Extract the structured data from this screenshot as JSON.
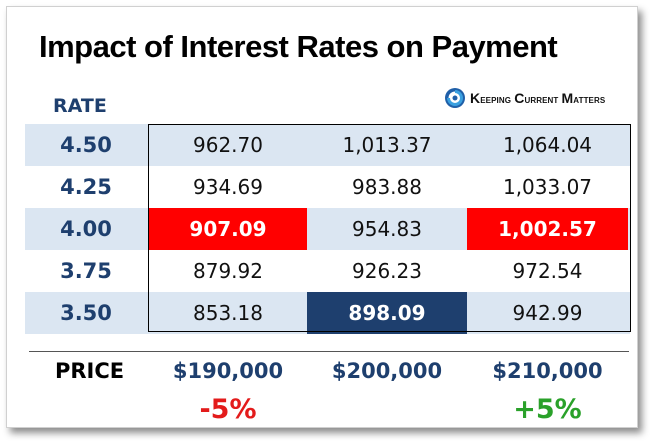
{
  "title": "Impact of Interest Rates on Payment",
  "rate_header": "RATE",
  "logo": {
    "icon": "swirl-logo-icon",
    "text_k": "K",
    "text_rest1": "eeping ",
    "text_c": "C",
    "text_rest2": "urrent ",
    "text_m": "M",
    "text_rest3": "atters"
  },
  "rows": [
    {
      "rate": "4.50",
      "values": [
        "962.70",
        "1,013.37",
        "1,064.04"
      ]
    },
    {
      "rate": "4.25",
      "values": [
        "934.69",
        "983.88",
        "1,033.07"
      ]
    },
    {
      "rate": "4.00",
      "values": [
        "907.09",
        "954.83",
        "1,002.57"
      ]
    },
    {
      "rate": "3.75",
      "values": [
        "879.92",
        "926.23",
        "972.54"
      ]
    },
    {
      "rate": "3.50",
      "values": [
        "853.18",
        "898.09",
        "942.99"
      ]
    }
  ],
  "price_label": "PRICE",
  "prices": [
    "$190,000",
    "$200,000",
    "$210,000"
  ],
  "changes": {
    "left": "-5%",
    "right": "+5%"
  },
  "colors": {
    "navy": "#1e3f6e",
    "highlight_red": "#ff0000",
    "shade": "#dbe6f2",
    "negative": "#e31b1b",
    "positive": "#2aa12a"
  }
}
